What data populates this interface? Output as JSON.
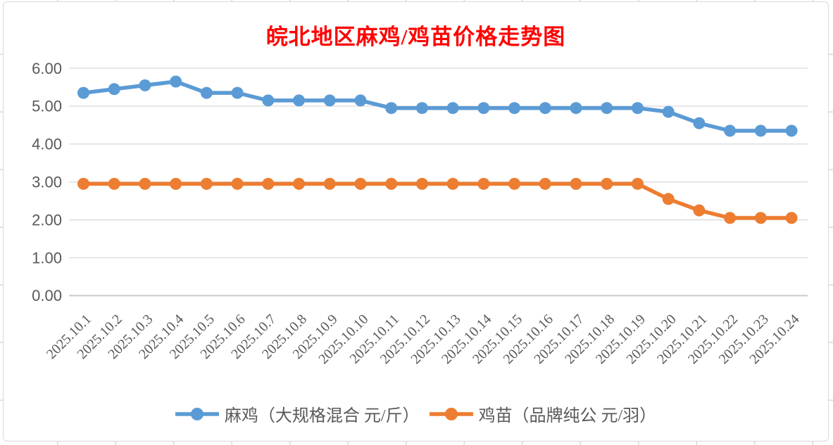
{
  "chart_data": {
    "type": "line",
    "title": "皖北地区麻鸡/鸡苗价格走势图",
    "title_color": "#ff0000",
    "categories": [
      "2025.10.1",
      "2025.10.2",
      "2025.10.3",
      "2025.10.4",
      "2025.10.5",
      "2025.10.6",
      "2025.10.7",
      "2025.10.8",
      "2025.10.9",
      "2025.10.10",
      "2025.10.11",
      "2025.10.12",
      "2025.10.13",
      "2025.10.14",
      "2025.10.15",
      "2025.10.16",
      "2025.10.17",
      "2025.10.18",
      "2025.10.19",
      "2025.10.20",
      "2025.10.21",
      "2025.10.22",
      "2025.10.23",
      "2025.10.24"
    ],
    "series": [
      {
        "name": "麻鸡（大规格混合 元/斤）",
        "color": "#5B9BD5",
        "values": [
          5.35,
          5.45,
          5.55,
          5.65,
          5.35,
          5.35,
          5.15,
          5.15,
          5.15,
          5.15,
          4.95,
          4.95,
          4.95,
          4.95,
          4.95,
          4.95,
          4.95,
          4.95,
          4.95,
          4.85,
          4.55,
          4.35,
          4.35,
          4.35
        ]
      },
      {
        "name": "鸡苗（品牌纯公 元/羽）",
        "color": "#ED7D31",
        "values": [
          2.95,
          2.95,
          2.95,
          2.95,
          2.95,
          2.95,
          2.95,
          2.95,
          2.95,
          2.95,
          2.95,
          2.95,
          2.95,
          2.95,
          2.95,
          2.95,
          2.95,
          2.95,
          2.95,
          2.55,
          2.25,
          2.05,
          2.05,
          2.05
        ]
      }
    ],
    "ylim": [
      0,
      6
    ],
    "ytick_labels": [
      "0.00",
      "1.00",
      "2.00",
      "3.00",
      "4.00",
      "5.00",
      "6.00"
    ],
    "grid": "horizontal-only",
    "legend_position": "bottom",
    "tick_label_color": "#595959",
    "gridline_color": "#d9d9d9",
    "axis_line_color": "#c9c9c9",
    "marker_style": "circle"
  }
}
